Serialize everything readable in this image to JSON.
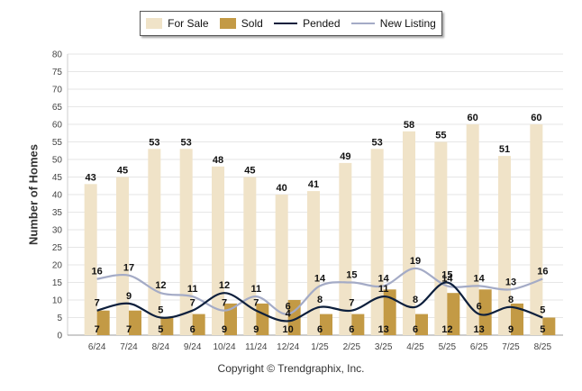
{
  "chart_data": {
    "type": "bar",
    "ylabel": "Number of Homes",
    "xlabel": "",
    "ylim": [
      0,
      80
    ],
    "yticks": [
      0,
      5,
      10,
      15,
      20,
      25,
      30,
      35,
      40,
      45,
      50,
      55,
      60,
      65,
      70,
      75,
      80
    ],
    "grid": true,
    "legend_position": "top-center",
    "categories": [
      "6/24",
      "7/24",
      "8/24",
      "9/24",
      "10/24",
      "11/24",
      "12/24",
      "1/25",
      "2/25",
      "3/25",
      "4/25",
      "5/25",
      "6/25",
      "7/25",
      "8/25"
    ],
    "series": [
      {
        "name": "For Sale",
        "kind": "bar",
        "color": "#f0e3c8",
        "values": [
          43,
          45,
          53,
          53,
          48,
          45,
          40,
          41,
          49,
          53,
          58,
          55,
          60,
          51,
          60
        ]
      },
      {
        "name": "Sold",
        "kind": "bar",
        "color": "#c39a45",
        "values": [
          7,
          7,
          5,
          6,
          9,
          9,
          10,
          6,
          6,
          13,
          6,
          12,
          13,
          9,
          5
        ]
      },
      {
        "name": "Pended",
        "kind": "line",
        "color": "#0d1f3c",
        "values": [
          7,
          9,
          5,
          7,
          12,
          7,
          4,
          8,
          7,
          11,
          8,
          15,
          6,
          8,
          5
        ]
      },
      {
        "name": "New Listing",
        "kind": "line",
        "color": "#a4abc6",
        "values": [
          16,
          17,
          12,
          11,
          7,
          11,
          6,
          14,
          15,
          14,
          19,
          14,
          14,
          13,
          16
        ]
      }
    ]
  },
  "footer": {
    "copyright": "Copyright © Trendgraphix, Inc."
  }
}
